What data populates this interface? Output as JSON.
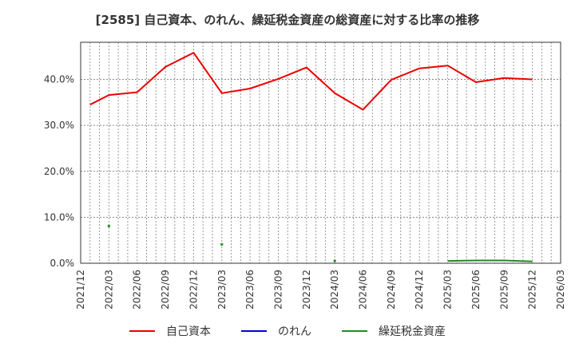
{
  "chart_data": {
    "type": "line",
    "title": "[2585]  自己資本、のれん、繰延税金資産の総資産に対する比率の推移",
    "xlabel": "",
    "ylabel": "",
    "ylim": [
      0,
      48
    ],
    "y_ticks": [
      "0.0%",
      "10.0%",
      "20.0%",
      "30.0%",
      "40.0%"
    ],
    "x_ticks": [
      "2021/12",
      "2022/03",
      "2022/06",
      "2022/09",
      "2022/12",
      "2023/03",
      "2023/06",
      "2023/09",
      "2023/12",
      "2024/03",
      "2024/06",
      "2024/09",
      "2024/12",
      "2025/03",
      "2025/06",
      "2025/09",
      "2025/12",
      "2026/03"
    ],
    "grid": true,
    "legend_position": "bottom",
    "series": [
      {
        "name": "自己資本",
        "color": "#ee0000",
        "x": [
          "2022/01",
          "2022/03",
          "2022/06",
          "2022/09",
          "2022/12",
          "2023/03",
          "2023/06",
          "2023/09",
          "2023/12",
          "2024/03",
          "2024/06",
          "2024/09",
          "2024/12",
          "2025/03",
          "2025/06",
          "2025/09",
          "2025/12"
        ],
        "values": [
          34.5,
          36.6,
          37.2,
          42.7,
          45.8,
          37.0,
          38.0,
          40.1,
          42.6,
          37.0,
          33.4,
          39.9,
          42.4,
          43.0,
          39.4,
          40.3,
          40.0
        ]
      },
      {
        "name": "のれん",
        "color": "#0000dd",
        "x": [],
        "values": []
      },
      {
        "name": "繰延税金資産",
        "color": "#228b22",
        "x": [
          "2022/03",
          "2023/03",
          "2024/03",
          "2025/03",
          "2025/06",
          "2025/09",
          "2025/12"
        ],
        "values": [
          8.1,
          4.1,
          0.5,
          0.5,
          0.6,
          0.6,
          0.4
        ]
      }
    ]
  },
  "legend": {
    "items": [
      "自己資本",
      "のれん",
      "繰延税金資産"
    ]
  }
}
